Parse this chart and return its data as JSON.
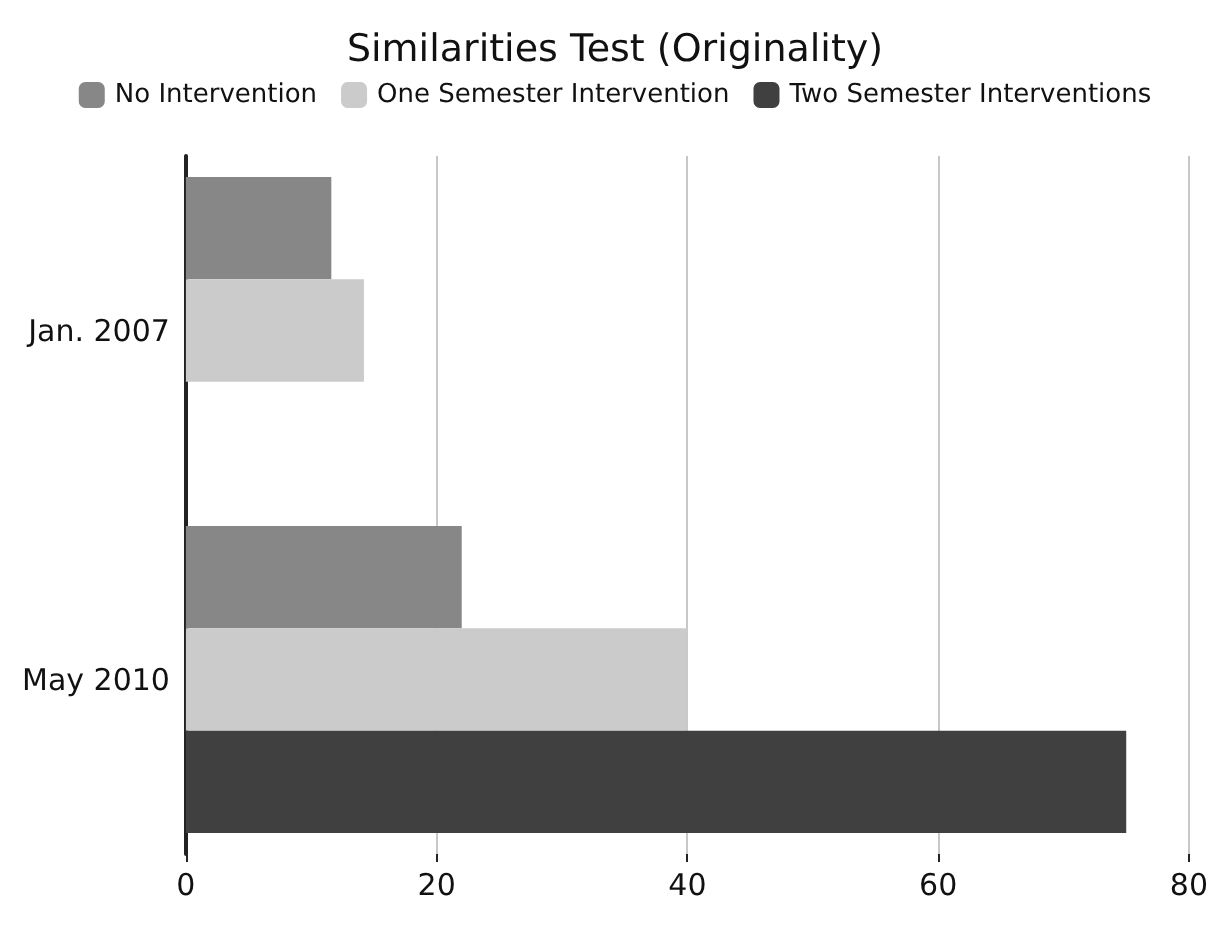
{
  "chart_data": {
    "type": "bar",
    "orientation": "horizontal",
    "title": "Similarities Test (Originality)",
    "categories": [
      "Jan. 2007",
      "May 2010"
    ],
    "series": [
      {
        "name": "No Intervention",
        "color": "#878787",
        "values": [
          11.6,
          22
        ]
      },
      {
        "name": "One Semester Intervention",
        "color": "#cbcbcb",
        "values": [
          14.2,
          40
        ]
      },
      {
        "name": "Two Semester Interventions",
        "color": "#404040",
        "values": [
          null,
          75
        ]
      }
    ],
    "xlim": [
      0,
      80
    ],
    "xticks": [
      0,
      20,
      40,
      60,
      80
    ],
    "grid": "x",
    "legend": "top"
  }
}
